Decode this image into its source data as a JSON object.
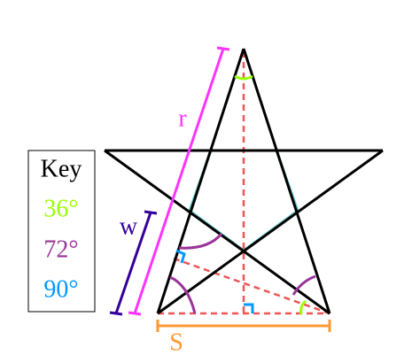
{
  "labels": {
    "r": {
      "text": "r",
      "color": "#ff33ff"
    },
    "w": {
      "text": "w",
      "color": "#330099"
    },
    "s": {
      "text": "S",
      "color": "#ff9933"
    }
  },
  "key": {
    "title": "Key",
    "entries": [
      {
        "label": "36°",
        "color": "#99ff00"
      },
      {
        "label": "72°",
        "color": "#993399"
      },
      {
        "label": "90°",
        "color": "#0099ff"
      }
    ]
  }
}
